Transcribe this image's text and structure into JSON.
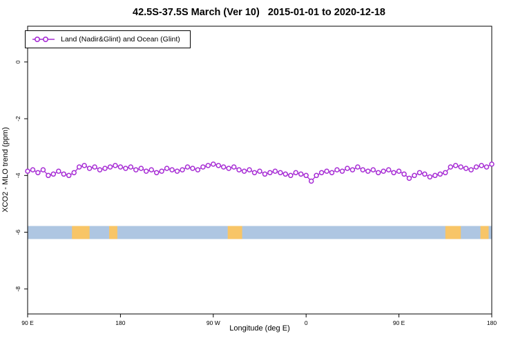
{
  "title": "42.5S-37.5S March (Ver 10)   2015-01-01 to 2020-12-18",
  "legend": {
    "label": "Land (Nadir&Glint) and Ocean (Glint)"
  },
  "axes": {
    "x_label": "Longitude (deg E)",
    "y_label": "XCO2 - MLO trend (ppm)"
  },
  "colors": {
    "series": "#A62BD4",
    "marker_fill": "#ffffff",
    "ocean_band": "#AEC6E2",
    "land_band": "#F8C567",
    "axis": "#000000",
    "background": "#ffffff"
  },
  "chart_data": {
    "type": "line",
    "title": "42.5S-37.5S March (Ver 10)   2015-01-01 to 2020-12-18",
    "xlabel": "Longitude (deg E)",
    "ylabel": "XCO2 - MLO trend (ppm)",
    "xlim": [
      90,
      540
    ],
    "ylim": [
      -8.88,
      1.26
    ],
    "grid": false,
    "legend_position": "top-left",
    "x_ticks": {
      "positions": [
        90,
        180,
        270,
        360,
        450,
        540
      ],
      "labels": [
        "90 E",
        "180",
        "90 W",
        "0",
        "90 E",
        "180"
      ]
    },
    "y_ticks": {
      "positions": [
        0,
        -2,
        -4,
        -6,
        -8
      ],
      "labels": [
        "0",
        "-2",
        "-4",
        "-6",
        "-8"
      ]
    },
    "series": [
      {
        "name": "Land (Nadir&Glint) and Ocean (Glint)",
        "marker": "open-circle",
        "x_start": 90,
        "x_step": 5,
        "values": [
          -3.85,
          -3.8,
          -3.9,
          -3.8,
          -4.0,
          -3.95,
          -3.85,
          -3.95,
          -4.0,
          -3.9,
          -3.7,
          -3.65,
          -3.75,
          -3.7,
          -3.8,
          -3.75,
          -3.7,
          -3.65,
          -3.7,
          -3.75,
          -3.7,
          -3.8,
          -3.75,
          -3.85,
          -3.8,
          -3.9,
          -3.85,
          -3.75,
          -3.8,
          -3.85,
          -3.8,
          -3.7,
          -3.75,
          -3.8,
          -3.7,
          -3.65,
          -3.6,
          -3.65,
          -3.7,
          -3.75,
          -3.7,
          -3.8,
          -3.85,
          -3.8,
          -3.9,
          -3.85,
          -3.95,
          -3.9,
          -3.85,
          -3.9,
          -3.95,
          -4.0,
          -3.9,
          -3.95,
          -4.0,
          -4.2,
          -4.0,
          -3.9,
          -3.85,
          -3.9,
          -3.8,
          -3.85,
          -3.75,
          -3.8,
          -3.7,
          -3.8,
          -3.85,
          -3.8,
          -3.9,
          -3.85,
          -3.8,
          -3.9,
          -3.85,
          -3.95,
          -4.1,
          -4.0,
          -3.9,
          -3.95,
          -4.05,
          -4.0,
          -3.95,
          -3.9,
          -3.7,
          -3.65,
          -3.7,
          -3.75,
          -3.8,
          -3.7,
          -3.65,
          -3.7,
          -3.6
        ]
      }
    ],
    "geo_band": {
      "description": "latitude-band land/ocean strip drawn at y = -6",
      "center": -6,
      "top": -5.78,
      "bottom": -6.24,
      "land_segments": [
        [
          133,
          150
        ],
        [
          169,
          177
        ],
        [
          284,
          298
        ],
        [
          495,
          510
        ],
        [
          529,
          537
        ]
      ]
    }
  }
}
